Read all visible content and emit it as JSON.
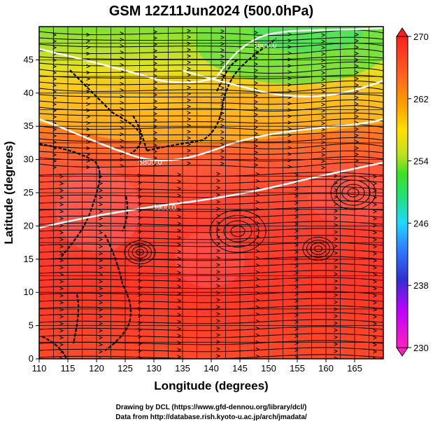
{
  "figure": {
    "title": "GSM 12Z11Jun2024 (500.0hPa)",
    "xlabel": "Longitude (degrees)",
    "ylabel": "Latitude  (degrees)",
    "credit_line1": "Drawing by DCL (https://www.gfd-dennou.org/library/dcl/)",
    "credit_line2": "Data from http://database.rish.kyoto-u.ac.jp/arch/jmadata/"
  },
  "map": {
    "x_ticks": [
      "110",
      "115",
      "120",
      "125",
      "130",
      "135",
      "140",
      "145",
      "150",
      "155",
      "160",
      "165"
    ],
    "y_ticks": [
      "0",
      "5",
      "10",
      "15",
      "20",
      "25",
      "30",
      "35",
      "40",
      "45"
    ],
    "xlim": [
      110,
      170
    ],
    "ylim": [
      0,
      50
    ],
    "contour_labels": [
      "5600.0",
      "5800.0",
      "5900.0",
      "5600.0"
    ],
    "grid": true
  },
  "colorbar": {
    "ticks": [
      "270",
      "262",
      "254",
      "246",
      "238",
      "230"
    ],
    "range": [
      230,
      270
    ],
    "colors": [
      "#ff1fbf",
      "#c000ff",
      "#3030d0",
      "#2f7fff",
      "#20d8ff",
      "#20e080",
      "#40e020",
      "#c0e020",
      "#ffe000",
      "#ffa000",
      "#ff6020",
      "#ff2020"
    ]
  }
}
